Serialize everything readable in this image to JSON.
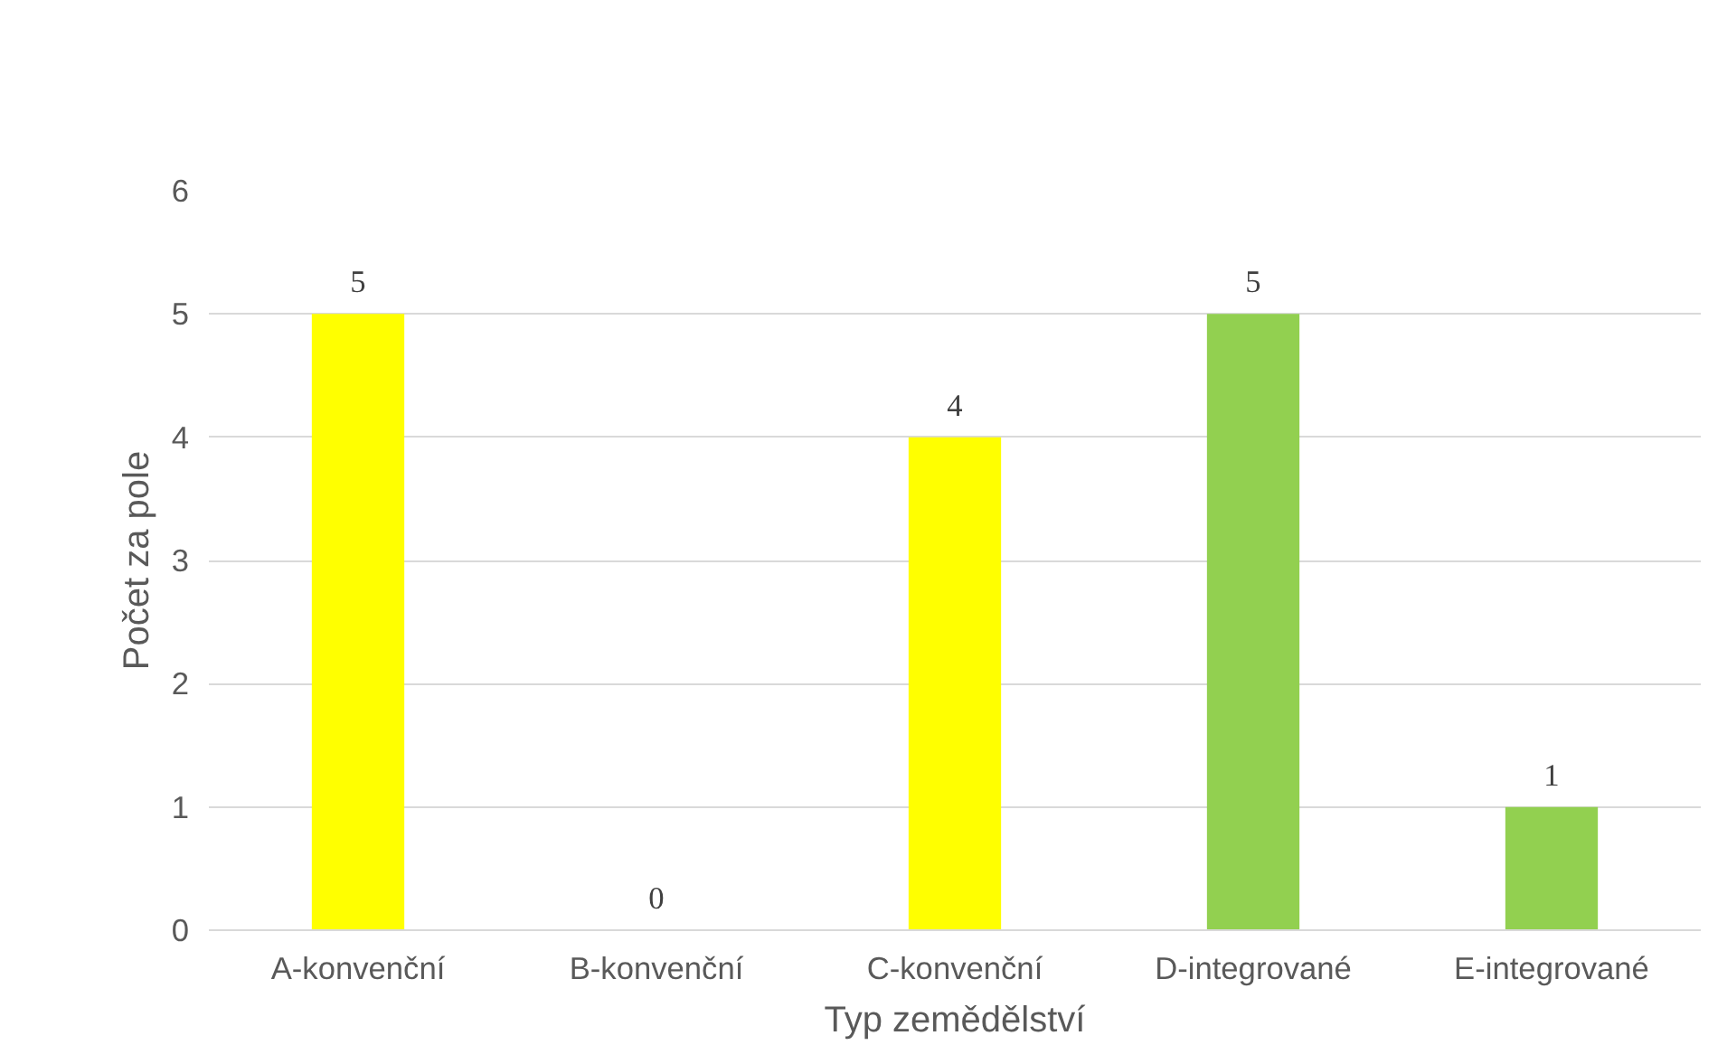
{
  "chart_data": {
    "type": "bar",
    "xlabel": "Typ zemědělství",
    "ylabel": "Počet za pole",
    "categories": [
      "A-konvenční",
      "B-konvenční",
      "C-konvenční",
      "D-integrované",
      "E-integrované"
    ],
    "values": [
      5,
      0,
      4,
      5,
      1
    ],
    "colors": [
      "#ffff00",
      "#ffff00",
      "#ffff00",
      "#92d050",
      "#92d050"
    ],
    "ylim": [
      0,
      6
    ],
    "yticks": [
      0,
      1,
      2,
      3,
      4,
      5,
      6
    ],
    "grid": "y",
    "data_labels": true
  }
}
